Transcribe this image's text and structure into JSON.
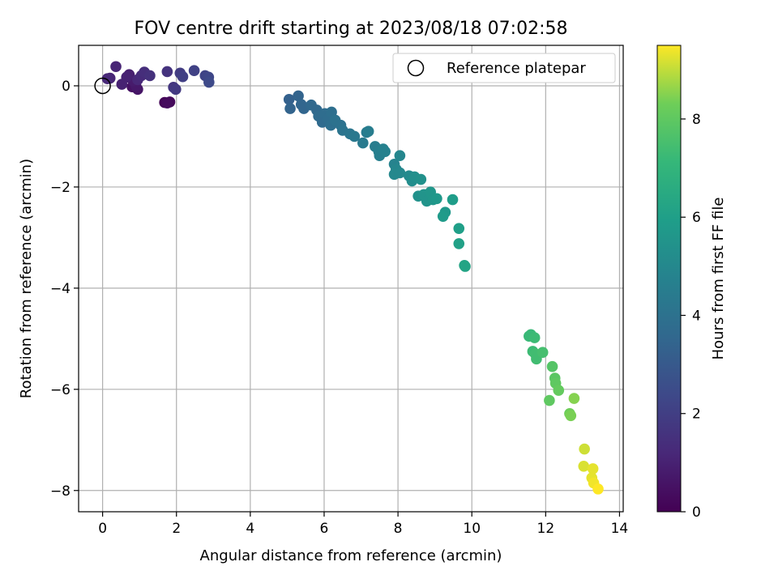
{
  "chart_data": {
    "type": "scatter",
    "title": "FOV centre drift starting at 2023/08/18 07:02:58",
    "xlabel": "Angular distance from reference (arcmin)",
    "ylabel": "Rotation from reference (arcmin)",
    "xlim": [
      -0.65,
      14.1
    ],
    "ylim": [
      -8.42,
      0.8
    ],
    "xticks": [
      0,
      2,
      4,
      6,
      8,
      10,
      12,
      14
    ],
    "yticks": [
      0,
      -2,
      -4,
      -6,
      -8
    ],
    "xtick_labels": [
      "0",
      "2",
      "4",
      "6",
      "8",
      "10",
      "12",
      "14"
    ],
    "ytick_labels": [
      "0",
      "−2",
      "−4",
      "−6",
      "−8"
    ],
    "grid": true,
    "colormap": "viridis",
    "colorbar": {
      "label": "Hours from first FF file",
      "range": [
        0,
        9.5
      ],
      "ticks": [
        0,
        2,
        4,
        6,
        8
      ],
      "tick_labels": [
        "0",
        "2",
        "4",
        "6",
        "8"
      ]
    },
    "legend": {
      "position": "top-right",
      "label": "Reference platepar",
      "marker": "open-circle"
    },
    "reference_point": {
      "x": 0,
      "y": 0
    },
    "points": [
      {
        "x": 1.68,
        "y": -0.33,
        "c": 0.1
      },
      {
        "x": 1.82,
        "y": -0.32,
        "c": 0.2
      },
      {
        "x": 1.75,
        "y": -0.34,
        "c": 0.3
      },
      {
        "x": 0.8,
        "y": -0.02,
        "c": 0.5
      },
      {
        "x": 0.95,
        "y": -0.07,
        "c": 0.6
      },
      {
        "x": 0.9,
        "y": 0.0,
        "c": 0.7
      },
      {
        "x": 0.82,
        "y": 0.1,
        "c": 0.8
      },
      {
        "x": 0.72,
        "y": 0.22,
        "c": 0.9
      },
      {
        "x": 0.65,
        "y": 0.17,
        "c": 1.0
      },
      {
        "x": 0.52,
        "y": 0.03,
        "c": 1.0
      },
      {
        "x": 0.36,
        "y": 0.38,
        "c": 1.1
      },
      {
        "x": 0.2,
        "y": 0.15,
        "c": 1.1
      },
      {
        "x": 0.13,
        "y": 0.14,
        "c": 1.2
      },
      {
        "x": 0.95,
        "y": 0.12,
        "c": 1.2
      },
      {
        "x": 1.05,
        "y": 0.2,
        "c": 1.3
      },
      {
        "x": 1.13,
        "y": 0.27,
        "c": 1.4
      },
      {
        "x": 1.28,
        "y": 0.2,
        "c": 1.5
      },
      {
        "x": 1.75,
        "y": 0.28,
        "c": 1.6
      },
      {
        "x": 1.92,
        "y": -0.03,
        "c": 1.7
      },
      {
        "x": 1.98,
        "y": -0.07,
        "c": 1.8
      },
      {
        "x": 2.1,
        "y": 0.25,
        "c": 1.9
      },
      {
        "x": 2.17,
        "y": 0.18,
        "c": 2.0
      },
      {
        "x": 2.48,
        "y": 0.3,
        "c": 2.1
      },
      {
        "x": 2.78,
        "y": 0.2,
        "c": 2.2
      },
      {
        "x": 2.87,
        "y": 0.17,
        "c": 2.3
      },
      {
        "x": 2.88,
        "y": 0.07,
        "c": 2.4
      },
      {
        "x": 5.05,
        "y": -0.27,
        "c": 3.3
      },
      {
        "x": 5.08,
        "y": -0.45,
        "c": 3.4
      },
      {
        "x": 5.3,
        "y": -0.2,
        "c": 3.4
      },
      {
        "x": 5.38,
        "y": -0.37,
        "c": 3.5
      },
      {
        "x": 5.45,
        "y": -0.45,
        "c": 3.5
      },
      {
        "x": 5.65,
        "y": -0.38,
        "c": 3.6
      },
      {
        "x": 5.8,
        "y": -0.48,
        "c": 3.6
      },
      {
        "x": 5.85,
        "y": -0.6,
        "c": 3.7
      },
      {
        "x": 5.95,
        "y": -0.72,
        "c": 3.7
      },
      {
        "x": 6.02,
        "y": -0.55,
        "c": 3.8
      },
      {
        "x": 6.1,
        "y": -0.65,
        "c": 3.8
      },
      {
        "x": 6.18,
        "y": -0.78,
        "c": 3.9
      },
      {
        "x": 6.2,
        "y": -0.52,
        "c": 3.9
      },
      {
        "x": 6.3,
        "y": -0.68,
        "c": 4.0
      },
      {
        "x": 6.45,
        "y": -0.78,
        "c": 4.0
      },
      {
        "x": 6.5,
        "y": -0.88,
        "c": 4.1
      },
      {
        "x": 6.7,
        "y": -0.95,
        "c": 4.2
      },
      {
        "x": 6.82,
        "y": -1.0,
        "c": 4.3
      },
      {
        "x": 7.05,
        "y": -1.13,
        "c": 4.4
      },
      {
        "x": 7.15,
        "y": -0.92,
        "c": 4.4
      },
      {
        "x": 7.2,
        "y": -0.9,
        "c": 4.5
      },
      {
        "x": 7.38,
        "y": -1.2,
        "c": 4.5
      },
      {
        "x": 7.48,
        "y": -1.3,
        "c": 4.6
      },
      {
        "x": 7.5,
        "y": -1.38,
        "c": 4.6
      },
      {
        "x": 7.6,
        "y": -1.25,
        "c": 4.7
      },
      {
        "x": 7.65,
        "y": -1.3,
        "c": 4.7
      },
      {
        "x": 7.9,
        "y": -1.55,
        "c": 4.8
      },
      {
        "x": 7.95,
        "y": -1.65,
        "c": 4.9
      },
      {
        "x": 8.05,
        "y": -1.38,
        "c": 4.9
      },
      {
        "x": 7.9,
        "y": -1.75,
        "c": 5.0
      },
      {
        "x": 8.05,
        "y": -1.72,
        "c": 5.0
      },
      {
        "x": 8.3,
        "y": -1.78,
        "c": 5.1
      },
      {
        "x": 8.38,
        "y": -1.88,
        "c": 5.2
      },
      {
        "x": 8.45,
        "y": -1.8,
        "c": 5.3
      },
      {
        "x": 8.62,
        "y": -1.85,
        "c": 5.4
      },
      {
        "x": 8.55,
        "y": -2.18,
        "c": 5.4
      },
      {
        "x": 8.7,
        "y": -2.15,
        "c": 5.5
      },
      {
        "x": 8.78,
        "y": -2.28,
        "c": 5.5
      },
      {
        "x": 8.88,
        "y": -2.1,
        "c": 5.6
      },
      {
        "x": 8.95,
        "y": -2.25,
        "c": 5.6
      },
      {
        "x": 9.05,
        "y": -2.23,
        "c": 5.7
      },
      {
        "x": 9.28,
        "y": -2.5,
        "c": 5.7
      },
      {
        "x": 9.22,
        "y": -2.58,
        "c": 5.8
      },
      {
        "x": 9.48,
        "y": -2.25,
        "c": 5.9
      },
      {
        "x": 9.65,
        "y": -2.82,
        "c": 6.0
      },
      {
        "x": 9.65,
        "y": -3.12,
        "c": 6.1
      },
      {
        "x": 9.8,
        "y": -3.55,
        "c": 6.2
      },
      {
        "x": 9.82,
        "y": -3.57,
        "c": 6.2
      },
      {
        "x": 11.55,
        "y": -4.95,
        "c": 7.2
      },
      {
        "x": 11.6,
        "y": -4.92,
        "c": 7.2
      },
      {
        "x": 11.7,
        "y": -4.98,
        "c": 7.3
      },
      {
        "x": 11.65,
        "y": -5.25,
        "c": 7.3
      },
      {
        "x": 11.72,
        "y": -5.3,
        "c": 7.4
      },
      {
        "x": 11.75,
        "y": -5.4,
        "c": 7.4
      },
      {
        "x": 11.92,
        "y": -5.27,
        "c": 7.5
      },
      {
        "x": 12.18,
        "y": -5.55,
        "c": 7.8
      },
      {
        "x": 12.25,
        "y": -5.78,
        "c": 7.9
      },
      {
        "x": 12.27,
        "y": -5.88,
        "c": 8.0
      },
      {
        "x": 12.35,
        "y": -6.02,
        "c": 8.1
      },
      {
        "x": 12.1,
        "y": -6.22,
        "c": 8.0
      },
      {
        "x": 12.65,
        "y": -6.48,
        "c": 8.3
      },
      {
        "x": 12.68,
        "y": -6.52,
        "c": 8.4
      },
      {
        "x": 12.77,
        "y": -6.18,
        "c": 8.5
      },
      {
        "x": 13.05,
        "y": -7.18,
        "c": 9.1
      },
      {
        "x": 13.03,
        "y": -7.52,
        "c": 9.2
      },
      {
        "x": 13.28,
        "y": -7.57,
        "c": 9.3
      },
      {
        "x": 13.25,
        "y": -7.75,
        "c": 9.3
      },
      {
        "x": 13.3,
        "y": -7.85,
        "c": 9.4
      },
      {
        "x": 13.42,
        "y": -7.97,
        "c": 9.5
      }
    ]
  }
}
